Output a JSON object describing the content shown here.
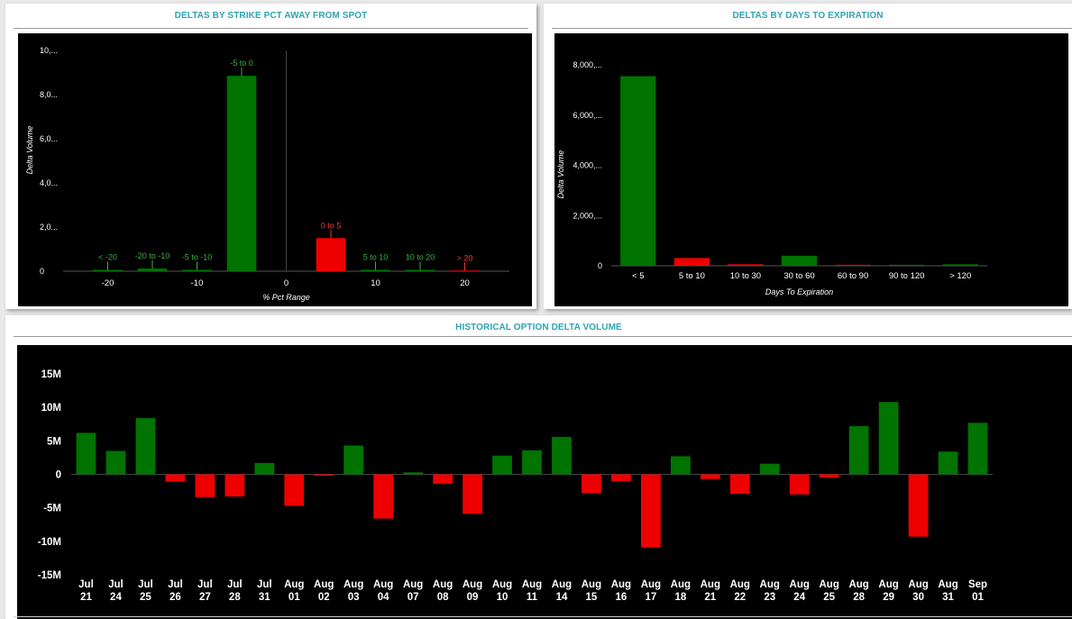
{
  "panels": {
    "strike": {
      "title": "DELTAS BY STRIKE PCT AWAY FROM SPOT"
    },
    "expiration": {
      "title": "DELTAS BY DAYS TO EXPIRATION"
    },
    "historical": {
      "title": "HISTORICAL OPTION DELTA VOLUME"
    }
  },
  "colors": {
    "positive": "#007300",
    "negative": "#ee0000",
    "positive_label": "#3cb043",
    "negative_label": "#ff3333",
    "title": "#2fa3b3"
  },
  "chart_data": [
    {
      "id": "strike",
      "type": "bar",
      "title": "DELTAS BY STRIKE PCT AWAY FROM SPOT",
      "xlabel": "% Pct Range",
      "ylabel": "Delta Volume",
      "x_ticks": [
        "-20",
        "-10",
        "0",
        "10",
        "20"
      ],
      "xlim": [
        -25,
        25
      ],
      "y_ticks": [
        "10,...",
        "8,0...",
        "6,0...",
        "4,0...",
        "2,0...",
        "0"
      ],
      "ylim": [
        0,
        10000
      ],
      "bars": [
        {
          "label": "< -20",
          "x": -20,
          "value": 60,
          "sign": "positive"
        },
        {
          "label": "-20 to -10",
          "x": -15,
          "value": 120,
          "sign": "positive"
        },
        {
          "label": "-5 to -10",
          "x": -10,
          "value": 60,
          "sign": "positive"
        },
        {
          "label": "-5 to 0",
          "x": -5,
          "value": 8850,
          "sign": "positive"
        },
        {
          "label": "0 to 5",
          "x": 5,
          "value": 1500,
          "sign": "negative"
        },
        {
          "label": "5 to 10",
          "x": 10,
          "value": 60,
          "sign": "positive"
        },
        {
          "label": "10 to 20",
          "x": 15,
          "value": 60,
          "sign": "positive"
        },
        {
          "label": "> 20",
          "x": 20,
          "value": 30,
          "sign": "negative"
        }
      ],
      "grid": false
    },
    {
      "id": "expiration",
      "type": "bar",
      "title": "DELTAS BY DAYS TO EXPIRATION",
      "xlabel": "Days To Expiration",
      "ylabel": "Delta Volume",
      "categories": [
        "< 5",
        "5 to 10",
        "10 to 30",
        "30 to 60",
        "60 to 90",
        "90 to 120",
        "> 120"
      ],
      "values": [
        7550,
        310,
        60,
        400,
        40,
        40,
        60
      ],
      "signs": [
        "positive",
        "negative",
        "negative",
        "positive",
        "negative",
        "positive",
        "positive"
      ],
      "y_ticks": [
        "8,000,...",
        "6,000,...",
        "4,000,...",
        "2,000,...",
        "0"
      ],
      "ylim": [
        0,
        8000
      ],
      "grid": false
    },
    {
      "id": "historical",
      "type": "bar",
      "title": "HISTORICAL OPTION DELTA VOLUME",
      "categories": [
        [
          "Jul",
          "21"
        ],
        [
          "Jul",
          "24"
        ],
        [
          "Jul",
          "25"
        ],
        [
          "Jul",
          "26"
        ],
        [
          "Jul",
          "27"
        ],
        [
          "Jul",
          "28"
        ],
        [
          "Jul",
          "31"
        ],
        [
          "Aug",
          "01"
        ],
        [
          "Aug",
          "02"
        ],
        [
          "Aug",
          "03"
        ],
        [
          "Aug",
          "04"
        ],
        [
          "Aug",
          "07"
        ],
        [
          "Aug",
          "08"
        ],
        [
          "Aug",
          "09"
        ],
        [
          "Aug",
          "10"
        ],
        [
          "Aug",
          "11"
        ],
        [
          "Aug",
          "14"
        ],
        [
          "Aug",
          "15"
        ],
        [
          "Aug",
          "16"
        ],
        [
          "Aug",
          "17"
        ],
        [
          "Aug",
          "18"
        ],
        [
          "Aug",
          "21"
        ],
        [
          "Aug",
          "22"
        ],
        [
          "Aug",
          "23"
        ],
        [
          "Aug",
          "24"
        ],
        [
          "Aug",
          "25"
        ],
        [
          "Aug",
          "28"
        ],
        [
          "Aug",
          "29"
        ],
        [
          "Aug",
          "30"
        ],
        [
          "Aug",
          "31"
        ],
        [
          "Sep",
          "01"
        ]
      ],
      "values": [
        6.2,
        3.5,
        8.4,
        -1.1,
        -3.4,
        -3.3,
        1.7,
        -4.7,
        -0.2,
        4.3,
        -6.6,
        0.3,
        -1.4,
        -5.9,
        2.8,
        3.6,
        5.6,
        -2.8,
        -1.0,
        -10.9,
        2.7,
        -0.7,
        -2.9,
        1.6,
        -3.0,
        -0.5,
        7.2,
        10.8,
        -9.3,
        3.4,
        7.7
      ],
      "y_ticks": [
        "15M",
        "10M",
        "5M",
        "0",
        "-5M",
        "-10M",
        "-15M"
      ],
      "ylim": [
        -15,
        15
      ],
      "y_unit": "M",
      "grid": false
    }
  ]
}
